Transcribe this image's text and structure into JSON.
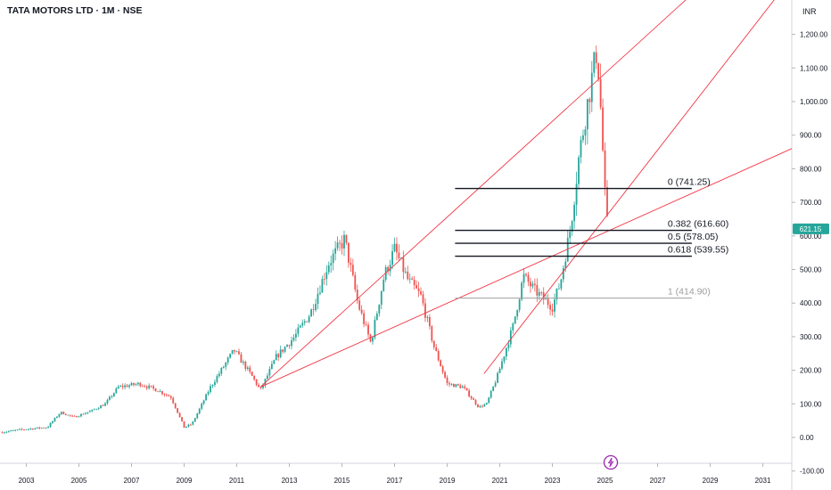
{
  "header": {
    "title": "TATA MOTORS LTD · 1M · NSE",
    "currency": "INR"
  },
  "colors": {
    "up": "#26a69a",
    "down": "#ef5350",
    "trendline": "#f23645",
    "fib_main": "#131722",
    "fib_one": "#9e9e9e",
    "price_tag": "#26a69a",
    "event_icon": "#9c27b0"
  },
  "price_tag": "621.15",
  "event_icon": "lightning-bolt-icon",
  "chart_data": {
    "type": "candlestick",
    "interval": "1M",
    "ylim": [
      -100,
      1300
    ],
    "xlim": [
      2002.0,
      2032.1
    ],
    "y_ticks": [
      "1,200.00",
      "1,100.00",
      "1,000.00",
      "900.00",
      "800.00",
      "700.00",
      "600.00",
      "500.00",
      "400.00",
      "300.00",
      "200.00",
      "100.00",
      "0.00",
      "-100.00"
    ],
    "y_tick_values": [
      1200,
      1100,
      1000,
      900,
      800,
      700,
      600,
      500,
      400,
      300,
      200,
      100,
      0,
      -100
    ],
    "x_ticks": [
      "2003",
      "2005",
      "2007",
      "2009",
      "2011",
      "2013",
      "2015",
      "2017",
      "2019",
      "2021",
      "2023",
      "2025",
      "2027",
      "2029",
      "2031"
    ],
    "x_tick_values": [
      2003,
      2005,
      2007,
      2009,
      2011,
      2013,
      2015,
      2017,
      2019,
      2021,
      2023,
      2025,
      2027,
      2029,
      2031
    ],
    "price_path": [
      [
        2002.0,
        15
      ],
      [
        2003.0,
        25
      ],
      [
        2003.8,
        30
      ],
      [
        2004.3,
        75
      ],
      [
        2004.8,
        60
      ],
      [
        2005.5,
        80
      ],
      [
        2006.0,
        100
      ],
      [
        2006.5,
        150
      ],
      [
        2007.3,
        160
      ],
      [
        2008.0,
        140
      ],
      [
        2008.5,
        120
      ],
      [
        2009.0,
        30
      ],
      [
        2009.3,
        40
      ],
      [
        2010.0,
        150
      ],
      [
        2010.9,
        260
      ],
      [
        2011.6,
        180
      ],
      [
        2011.9,
        140
      ],
      [
        2012.5,
        240
      ],
      [
        2013.2,
        300
      ],
      [
        2013.8,
        370
      ],
      [
        2014.5,
        520
      ],
      [
        2015.1,
        590
      ],
      [
        2015.6,
        400
      ],
      [
        2016.1,
        280
      ],
      [
        2016.6,
        480
      ],
      [
        2017.0,
        560
      ],
      [
        2017.5,
        470
      ],
      [
        2018.0,
        420
      ],
      [
        2018.5,
        270
      ],
      [
        2019.0,
        160
      ],
      [
        2019.6,
        150
      ],
      [
        2020.2,
        90
      ],
      [
        2020.5,
        100
      ],
      [
        2020.9,
        180
      ],
      [
        2021.5,
        330
      ],
      [
        2021.9,
        480
      ],
      [
        2022.3,
        440
      ],
      [
        2022.7,
        410
      ],
      [
        2023.0,
        390
      ],
      [
        2023.3,
        460
      ],
      [
        2023.7,
        630
      ],
      [
        2024.0,
        830
      ],
      [
        2024.3,
        980
      ],
      [
        2024.7,
        1160
      ],
      [
        2024.85,
        960
      ],
      [
        2025.0,
        721
      ],
      [
        2025.1,
        621.15
      ]
    ],
    "trendlines": [
      {
        "from": [
          2011.9,
          150
        ],
        "to": [
          2032.1,
          1590
        ]
      },
      {
        "from": [
          2011.9,
          150
        ],
        "to": [
          2032.1,
          860
        ]
      },
      {
        "from": [
          2020.4,
          190
        ],
        "to": [
          2032.1,
          1370
        ]
      }
    ],
    "fib_levels": [
      {
        "ratio": "0",
        "label": "0 (741.25)",
        "value": 741.25,
        "start": 2019.3,
        "end": 2028.3
      },
      {
        "ratio": "0.382",
        "label": "0.382 (616.60)",
        "value": 616.6,
        "start": 2019.3,
        "end": 2028.3
      },
      {
        "ratio": "0.5",
        "label": "0.5 (578.05)",
        "value": 578.05,
        "start": 2019.3,
        "end": 2028.3
      },
      {
        "ratio": "0.618",
        "label": "0.618 (539.55)",
        "value": 539.55,
        "start": 2019.3,
        "end": 2028.3
      },
      {
        "ratio": "1",
        "label": "1 (414.90)",
        "value": 414.9,
        "start": 2019.3,
        "end": 2028.3
      }
    ]
  }
}
